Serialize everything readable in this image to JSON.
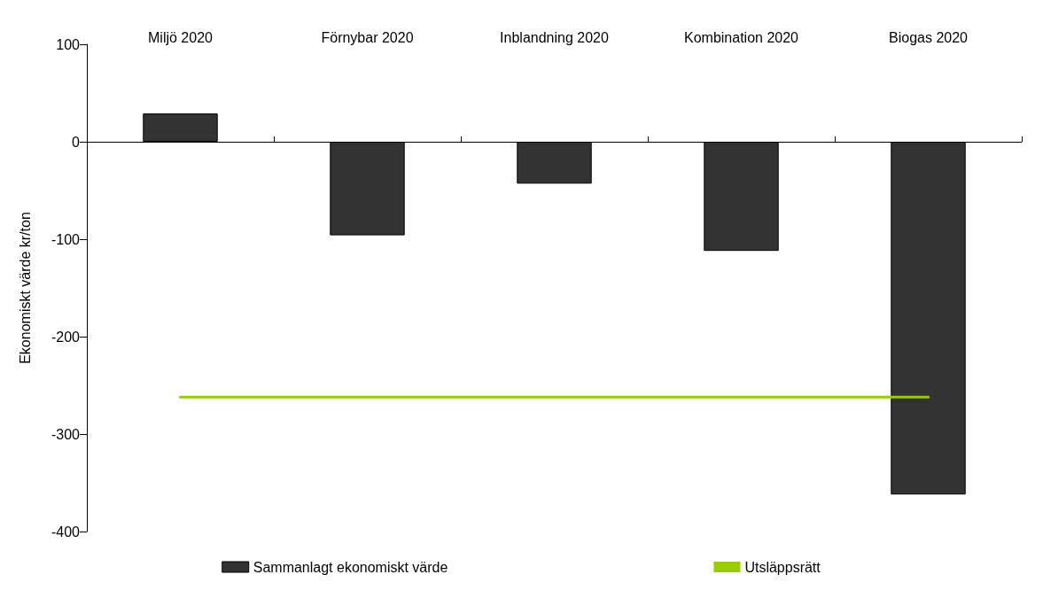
{
  "chart_data": {
    "type": "bar",
    "ylabel": "Ekonomiskt värde kr/ton",
    "categories": [
      "Miljö 2020",
      "Förnybar 2020",
      "Inblandning 2020",
      "Kombination 2020",
      "Biogas 2020"
    ],
    "series": [
      {
        "name": "Sammanlagt ekonomiskt värde",
        "color": "#333333",
        "values": [
          29,
          -96,
          -43,
          -112,
          -362
        ]
      },
      {
        "name": "Utsläppsrätt",
        "type": "line",
        "color": "#99cc00",
        "values": [
          -262,
          -262,
          -262,
          -262,
          -262
        ]
      }
    ],
    "ylim": [
      -400,
      100
    ],
    "yticks": [
      -400,
      -300,
      -200,
      -100,
      0,
      100
    ],
    "legend": "bottom",
    "marker": "none"
  }
}
